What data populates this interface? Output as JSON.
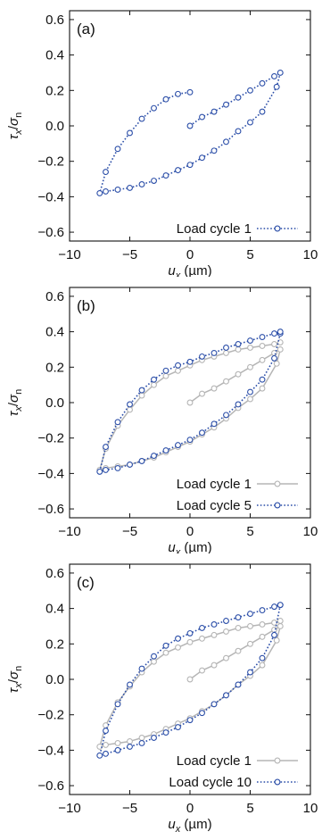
{
  "chart_data": [
    {
      "type": "line",
      "panel_label": "(a)",
      "xlim": [
        -10,
        10
      ],
      "ylim": [
        -0.65,
        0.65
      ],
      "xticks": [
        -10,
        -5,
        0,
        5,
        10
      ],
      "yticks": [
        -0.6,
        -0.4,
        -0.2,
        0.0,
        0.2,
        0.4,
        0.6
      ],
      "xtick_labels": [
        "−10",
        "−5",
        "0",
        "5",
        "10"
      ],
      "ytick_labels": [
        "−0.6",
        "−0.4",
        "−0.2",
        "0.0",
        "0.2",
        "0.4",
        "0.6"
      ],
      "xlabel_base": "u",
      "xlabel_sub": "x",
      "xlabel_unit": " (µm)",
      "ylabel_tau": "τ",
      "ylabel_tau_sub": "x",
      "ylabel_sigma": "σ",
      "ylabel_sigma_sub": "n",
      "legend_position": "bottom-right",
      "grid": false,
      "series": [
        {
          "name": "Load cycle 1",
          "color": "#2b4ea8",
          "style": "dotted",
          "x": [
            0.0,
            1.0,
            2.0,
            3.0,
            4.0,
            5.0,
            6.0,
            7.0,
            7.5,
            7.2,
            6.0,
            5.0,
            4.0,
            3.0,
            2.0,
            1.0,
            0.0,
            -1.0,
            -2.0,
            -3.0,
            -4.0,
            -5.0,
            -6.0,
            -7.0,
            -7.5,
            -7.0,
            -6.0,
            -5.0,
            -4.0,
            -3.0,
            -2.0,
            -1.0,
            0.0
          ],
          "y": [
            0.0,
            0.05,
            0.08,
            0.12,
            0.16,
            0.2,
            0.24,
            0.28,
            0.3,
            0.22,
            0.08,
            0.02,
            -0.03,
            -0.09,
            -0.14,
            -0.18,
            -0.22,
            -0.25,
            -0.28,
            -0.31,
            -0.33,
            -0.35,
            -0.36,
            -0.37,
            -0.38,
            -0.26,
            -0.13,
            -0.04,
            0.04,
            0.1,
            0.15,
            0.18,
            0.19
          ]
        }
      ]
    },
    {
      "type": "line",
      "panel_label": "(b)",
      "xlim": [
        -10,
        10
      ],
      "ylim": [
        -0.65,
        0.65
      ],
      "xticks": [
        -10,
        -5,
        0,
        5,
        10
      ],
      "yticks": [
        -0.6,
        -0.4,
        -0.2,
        0.0,
        0.2,
        0.4,
        0.6
      ],
      "xtick_labels": [
        "−10",
        "−5",
        "0",
        "5",
        "10"
      ],
      "ytick_labels": [
        "−0.6",
        "−0.4",
        "−0.2",
        "0.0",
        "0.2",
        "0.4",
        "0.6"
      ],
      "xlabel_base": "u",
      "xlabel_sub": "x",
      "xlabel_unit": " (µm)",
      "ylabel_tau": "τ",
      "ylabel_tau_sub": "x",
      "ylabel_sigma": "σ",
      "ylabel_sigma_sub": "n",
      "legend_position": "bottom-right",
      "grid": false,
      "series": [
        {
          "name": "Load cycle 1",
          "color": "#b5b5b5",
          "style": "solid",
          "x": [
            0.0,
            1.0,
            2.0,
            3.0,
            4.0,
            5.0,
            6.0,
            7.0,
            7.5,
            7.2,
            6.0,
            5.0,
            4.0,
            3.0,
            2.0,
            1.0,
            0.0,
            -1.0,
            -2.0,
            -3.0,
            -4.0,
            -5.0,
            -6.0,
            -7.0,
            -7.5,
            -7.0,
            -6.0,
            -5.0,
            -4.0,
            -3.0,
            -2.0,
            -1.0,
            0.0,
            1.0,
            2.0,
            3.0,
            4.0,
            5.0,
            6.0,
            7.0,
            7.5
          ],
          "y": [
            0.0,
            0.05,
            0.08,
            0.12,
            0.16,
            0.2,
            0.24,
            0.28,
            0.3,
            0.22,
            0.08,
            0.02,
            -0.03,
            -0.09,
            -0.14,
            -0.18,
            -0.22,
            -0.25,
            -0.28,
            -0.31,
            -0.33,
            -0.35,
            -0.36,
            -0.37,
            -0.38,
            -0.26,
            -0.13,
            -0.04,
            0.04,
            0.1,
            0.15,
            0.18,
            0.21,
            0.24,
            0.26,
            0.28,
            0.3,
            0.31,
            0.32,
            0.33,
            0.34
          ]
        },
        {
          "name": "Load cycle 5",
          "color": "#2b4ea8",
          "style": "dotted",
          "x": [
            7.5,
            7.0,
            6.0,
            5.0,
            4.0,
            3.0,
            2.0,
            1.0,
            0.0,
            -1.0,
            -2.0,
            -3.0,
            -4.0,
            -5.0,
            -6.0,
            -7.0,
            -7.5,
            -7.0,
            -6.0,
            -5.0,
            -4.0,
            -3.0,
            -2.0,
            -1.0,
            0.0,
            1.0,
            2.0,
            3.0,
            4.0,
            5.0,
            6.0,
            7.0,
            7.5
          ],
          "y": [
            0.39,
            0.25,
            0.13,
            0.06,
            -0.01,
            -0.07,
            -0.12,
            -0.17,
            -0.21,
            -0.24,
            -0.27,
            -0.3,
            -0.33,
            -0.35,
            -0.37,
            -0.38,
            -0.39,
            -0.25,
            -0.11,
            -0.01,
            0.07,
            0.13,
            0.18,
            0.21,
            0.23,
            0.26,
            0.28,
            0.31,
            0.33,
            0.35,
            0.37,
            0.39,
            0.4
          ]
        }
      ]
    },
    {
      "type": "line",
      "panel_label": "(c)",
      "xlim": [
        -10,
        10
      ],
      "ylim": [
        -0.65,
        0.65
      ],
      "xticks": [
        -10,
        -5,
        0,
        5,
        10
      ],
      "yticks": [
        -0.6,
        -0.4,
        -0.2,
        0.0,
        0.2,
        0.4,
        0.6
      ],
      "xtick_labels": [
        "−10",
        "−5",
        "0",
        "5",
        "10"
      ],
      "ytick_labels": [
        "−0.6",
        "−0.4",
        "−0.2",
        "0.0",
        "0.2",
        "0.4",
        "0.6"
      ],
      "xlabel_base": "u",
      "xlabel_sub": "x",
      "xlabel_unit": " (µm)",
      "ylabel_tau": "τ",
      "ylabel_tau_sub": "x",
      "ylabel_sigma": "σ",
      "ylabel_sigma_sub": "n",
      "legend_position": "bottom-right",
      "grid": false,
      "series": [
        {
          "name": "Load cycle 1",
          "color": "#b5b5b5",
          "style": "solid",
          "x": [
            0.0,
            1.0,
            2.0,
            3.0,
            4.0,
            5.0,
            6.0,
            7.0,
            7.5,
            7.2,
            6.0,
            5.0,
            4.0,
            3.0,
            2.0,
            1.0,
            0.0,
            -1.0,
            -2.0,
            -3.0,
            -4.0,
            -5.0,
            -6.0,
            -7.0,
            -7.5,
            -7.0,
            -6.0,
            -5.0,
            -4.0,
            -3.0,
            -2.0,
            -1.0,
            0.0,
            1.0,
            2.0,
            3.0,
            4.0,
            5.0,
            6.0,
            7.0,
            7.5
          ],
          "y": [
            0.0,
            0.05,
            0.08,
            0.12,
            0.16,
            0.2,
            0.24,
            0.28,
            0.3,
            0.22,
            0.08,
            0.02,
            -0.03,
            -0.09,
            -0.14,
            -0.18,
            -0.22,
            -0.25,
            -0.28,
            -0.31,
            -0.33,
            -0.35,
            -0.36,
            -0.37,
            -0.38,
            -0.26,
            -0.13,
            -0.04,
            0.04,
            0.1,
            0.15,
            0.18,
            0.21,
            0.23,
            0.25,
            0.27,
            0.29,
            0.3,
            0.31,
            0.32,
            0.33
          ]
        },
        {
          "name": "Load cycle 10",
          "color": "#2b4ea8",
          "style": "dotted",
          "x": [
            7.5,
            7.0,
            6.0,
            5.0,
            4.0,
            3.0,
            2.0,
            1.0,
            0.0,
            -1.0,
            -2.0,
            -3.0,
            -4.0,
            -5.0,
            -6.0,
            -7.0,
            -7.5,
            -7.0,
            -6.0,
            -5.0,
            -4.0,
            -3.0,
            -2.0,
            -1.0,
            0.0,
            1.0,
            2.0,
            3.0,
            4.0,
            5.0,
            6.0,
            7.0,
            7.5
          ],
          "y": [
            0.42,
            0.25,
            0.12,
            0.04,
            -0.03,
            -0.09,
            -0.14,
            -0.19,
            -0.23,
            -0.27,
            -0.3,
            -0.33,
            -0.36,
            -0.38,
            -0.4,
            -0.42,
            -0.43,
            -0.29,
            -0.14,
            -0.03,
            0.06,
            0.13,
            0.19,
            0.23,
            0.26,
            0.29,
            0.31,
            0.33,
            0.35,
            0.37,
            0.39,
            0.41,
            0.42
          ]
        }
      ]
    }
  ]
}
